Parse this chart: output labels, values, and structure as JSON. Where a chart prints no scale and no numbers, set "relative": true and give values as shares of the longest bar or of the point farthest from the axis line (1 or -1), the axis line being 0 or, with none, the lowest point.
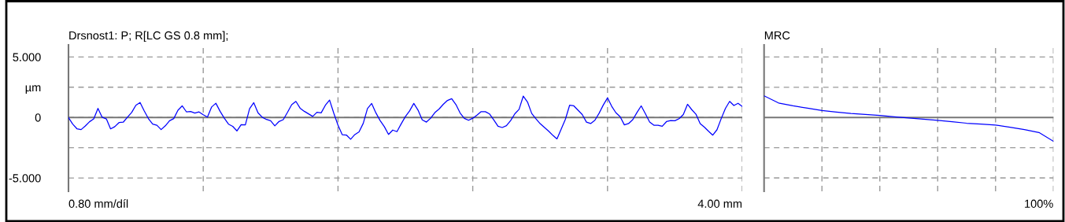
{
  "chart_data": [
    {
      "type": "line",
      "title": "Drsnost1: P; R[LC GS 0.8 mm];",
      "xlabel": "0.80 mm/díl",
      "annotations": [
        "4.00 mm"
      ],
      "categories": [
        null,
        null,
        null,
        null,
        null,
        null,
        null,
        null,
        null,
        null,
        null,
        null,
        null,
        null,
        null,
        null,
        null,
        null,
        null,
        null,
        null,
        null,
        null,
        null,
        null,
        null,
        null,
        null,
        null,
        null,
        null,
        null,
        null,
        null,
        null,
        null,
        null,
        null,
        null,
        null,
        null,
        null,
        null,
        null,
        null,
        null,
        null,
        null,
        null,
        null,
        null,
        null,
        null,
        null,
        null,
        null,
        null,
        null,
        null,
        null,
        null,
        null,
        null,
        null,
        null,
        null,
        null,
        null,
        null,
        null,
        null,
        null,
        null,
        null,
        null,
        null,
        null,
        null,
        null,
        null,
        null,
        null,
        null,
        null,
        null,
        null,
        null,
        null,
        null,
        null,
        null,
        null,
        null,
        null,
        null,
        null,
        null,
        null,
        null,
        null,
        null,
        null,
        null,
        null,
        null,
        null,
        null,
        null,
        null,
        null,
        null,
        null,
        null,
        null,
        null,
        null,
        null,
        null,
        null,
        null,
        null,
        null,
        null,
        null,
        null,
        null,
        null,
        null,
        null,
        null,
        null,
        null,
        null,
        null,
        null,
        null,
        null,
        null,
        null,
        null,
        null,
        null,
        null,
        null,
        null,
        null,
        null,
        null,
        null,
        null,
        null,
        null,
        null,
        null,
        null,
        null,
        null,
        null,
        null,
        null,
        null
      ],
      "series": [
        {
          "color": "#0000ff",
          "values": [
            0,
            -0.55,
            -0.93,
            -1.0,
            -0.7,
            -0.35,
            -0.12,
            0.75,
            0.02,
            -0.12,
            -0.94,
            -0.76,
            -0.42,
            -0.39,
            0.02,
            0.41,
            1.01,
            1.24,
            0.54,
            -0.1,
            -0.55,
            -0.64,
            -1.0,
            -0.69,
            -0.27,
            -0.09,
            0.6,
            0.96,
            0.47,
            0.49,
            0.37,
            0.46,
            0.23,
            0.03,
            0.87,
            1.18,
            0.51,
            -0.06,
            -0.55,
            -0.73,
            -1.11,
            -0.59,
            -0.61,
            0.72,
            1.22,
            0.39,
            0.02,
            -0.16,
            -0.27,
            -0.69,
            -0.33,
            -0.18,
            0.42,
            1.06,
            1.33,
            0.77,
            0.51,
            0.3,
            0.09,
            0.43,
            0.38,
            1.01,
            1.44,
            0.36,
            -0.64,
            -1.42,
            -1.45,
            -1.8,
            -1.41,
            -1.19,
            -0.48,
            0.74,
            1.16,
            0.38,
            -0.25,
            -0.76,
            -1.4,
            -1.04,
            -1.17,
            -0.53,
            0.07,
            0.54,
            1.16,
            0.61,
            -0.2,
            -0.38,
            -0.06,
            0.4,
            0.7,
            1.09,
            1.41,
            1.55,
            1.07,
            0.37,
            -0.07,
            -0.23,
            -0.06,
            0.19,
            0.48,
            0.48,
            0.29,
            -0.2,
            -0.73,
            -0.83,
            -0.68,
            -0.25,
            0.31,
            0.67,
            1.77,
            1.28,
            0.33,
            -0.11,
            -0.51,
            -0.82,
            -1.12,
            -1.47,
            -1.77,
            -0.96,
            -0.15,
            1.01,
            0.96,
            0.6,
            0.24,
            -0.38,
            -0.5,
            -0.23,
            0.35,
            1.03,
            1.62,
            0.92,
            0.39,
            0.06,
            -0.61,
            -0.5,
            -0.18,
            0.41,
            0.96,
            0.31,
            -0.37,
            -0.64,
            -0.64,
            -0.72,
            -0.34,
            -0.25,
            -0.27,
            -0.1,
            0.24,
            1.09,
            0.65,
            0.27,
            -0.5,
            -0.8,
            -1.14,
            -1.46,
            -1.01,
            -0.09,
            0.75,
            1.33,
            0.99,
            1.17,
            0.91
          ]
        }
      ],
      "ylim": [
        -6.1,
        6.0
      ],
      "yticks": [
        {
          "value": -5,
          "label": "-5.000"
        },
        {
          "value": -2.5,
          "label": null
        },
        {
          "value": 0,
          "label": "0"
        },
        {
          "value": 2.5,
          "label": "µm"
        },
        {
          "value": 5,
          "label": "5.000"
        }
      ],
      "grid": true,
      "line_style": "solid",
      "marker": "none",
      "ref_lines": [
        {
          "axis": "y",
          "value": 0,
          "color": "#777777",
          "line_style": "solid"
        }
      ]
    },
    {
      "type": "line",
      "title": "MRC",
      "annotations": [
        "100%"
      ],
      "relative": true,
      "categories": [
        null,
        null,
        null,
        null,
        null,
        null,
        null,
        null,
        null,
        null,
        null,
        null,
        null,
        null,
        null,
        null,
        null,
        null,
        null,
        null,
        null
      ],
      "series": [
        {
          "color": "#0000ff",
          "values": [
            0.91,
            0.61,
            0.49,
            0.39,
            0.29,
            0.23,
            0.17,
            0.13,
            0.09,
            0.03,
            -0.02,
            -0.07,
            -0.12,
            -0.18,
            -0.24,
            -0.28,
            -0.32,
            -0.41,
            -0.51,
            -0.63,
            -1
          ]
        }
      ],
      "grid": true,
      "line_style": "solid",
      "marker": "none"
    }
  ]
}
